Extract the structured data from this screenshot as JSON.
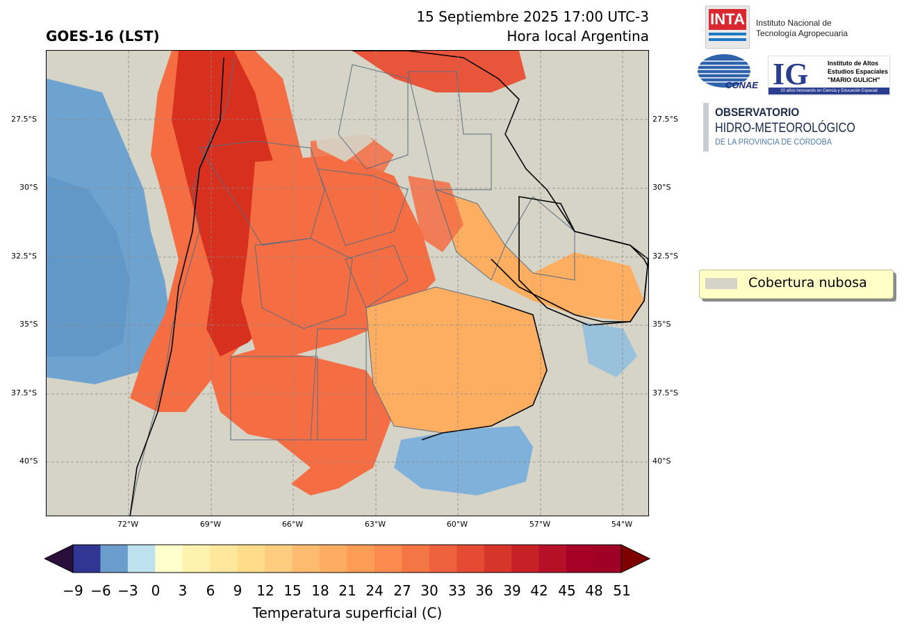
{
  "header": {
    "title_left": "GOES-16 (LST)",
    "date_line": "15 Septiembre 2025 17:00 UTC-3",
    "local_line": "Hora local Argentina"
  },
  "map": {
    "latitude_labels": [
      "27.5°S",
      "30°S",
      "32.5°S",
      "35°S",
      "37.5°S",
      "40°S"
    ],
    "longitude_labels": [
      "72°W",
      "69°W",
      "66°W",
      "63°W",
      "60°W",
      "57°W",
      "54°W"
    ],
    "colors": {
      "cloud": "#d6d4c6",
      "ocean": "#7fb1da",
      "hot": "#d7301f",
      "warm": "#f46d43",
      "mild": "#fdae61",
      "boundary": "#5b6b80"
    }
  },
  "legend": {
    "cloud_label": "Cobertura nubosa"
  },
  "colorbar": {
    "title": "Temperatura superficial (C)",
    "ticks": [
      "−9",
      "−6",
      "−3",
      "0",
      "3",
      "6",
      "9",
      "12",
      "15",
      "18",
      "21",
      "24",
      "27",
      "30",
      "33",
      "36",
      "39",
      "42",
      "45",
      "48",
      "51"
    ],
    "colors": [
      "#313695",
      "#6a9dcc",
      "#bde2ef",
      "#ffffcc",
      "#fff2ae",
      "#ffe89c",
      "#fedc8a",
      "#fdcc7f",
      "#fdbb70",
      "#fdac62",
      "#fc9c55",
      "#fa8a4d",
      "#f57645",
      "#ee613d",
      "#e54a33",
      "#d7352a",
      "#c82027",
      "#b51025",
      "#a50026",
      "#a00025"
    ],
    "under_color": "#2b0f3b",
    "over_color": "#7f0000"
  },
  "logos": {
    "inta_acronym": "INTA",
    "inta_line1": "Instituto Nacional de",
    "inta_line2": "Tecnología Agropecuaria",
    "conae": "CONAE",
    "ig_letters": "IG",
    "ig_line1": "Instituto de Altos",
    "ig_line2": "Estudios Espaciales",
    "ig_line3": "\"MARIO GULICH\"",
    "ig_strip": "20 años innovando en Ciencia y Educación Espacial",
    "obs_line1": "OBSERVATORIO",
    "obs_line2": "HIDRO-METEOROLÓGICO",
    "obs_line3": "DE LA PROVINCIA DE CÓRDOBA"
  }
}
